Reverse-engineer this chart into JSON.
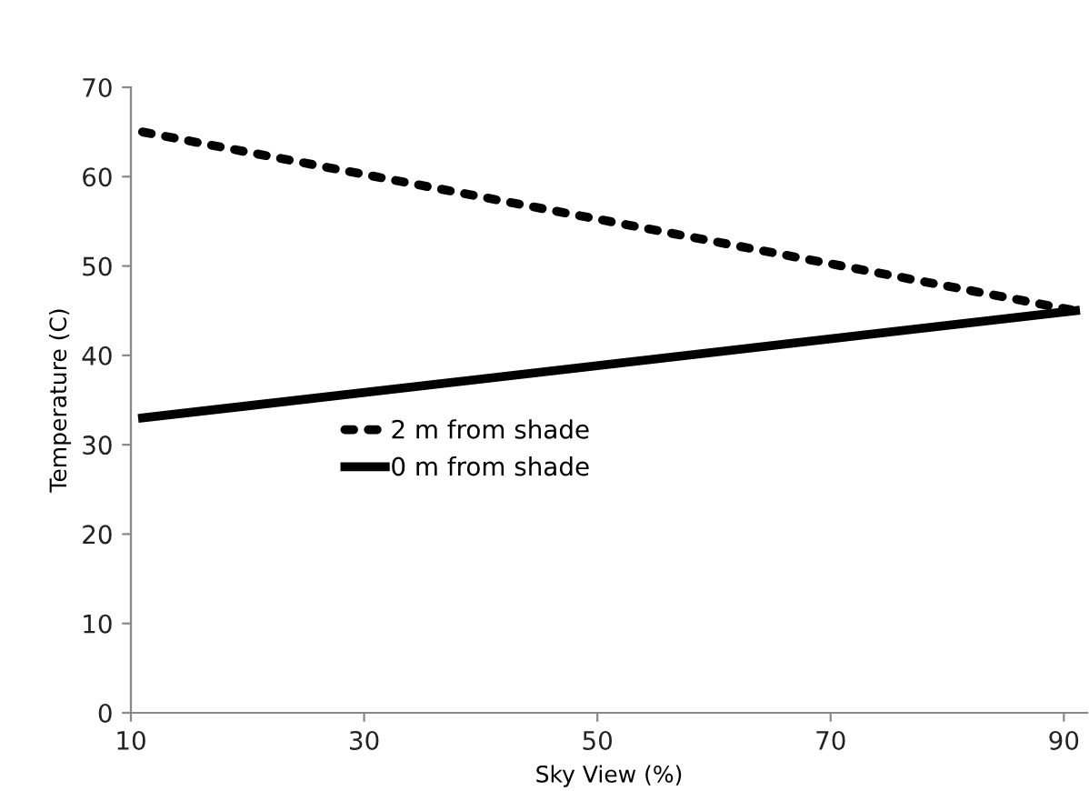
{
  "chart_data": {
    "type": "line",
    "xlabel": "Sky View (%)",
    "ylabel": "Temperature (C)",
    "x": [
      11,
      91
    ],
    "series": [
      {
        "name": "2 m from shade",
        "color": "#000000",
        "values": [
          65,
          45
        ],
        "line_style": "dotted"
      },
      {
        "name": "0 m from shade",
        "color": "#000000",
        "values": [
          33,
          45
        ],
        "line_style": "solid"
      }
    ],
    "xlim": [
      10,
      92
    ],
    "xticks": [
      10,
      30,
      50,
      70,
      90
    ],
    "ylim": [
      0,
      70
    ],
    "yticks": [
      0,
      10,
      20,
      30,
      40,
      50,
      60,
      70
    ],
    "grid": false,
    "legend": "left",
    "marker": "none"
  }
}
